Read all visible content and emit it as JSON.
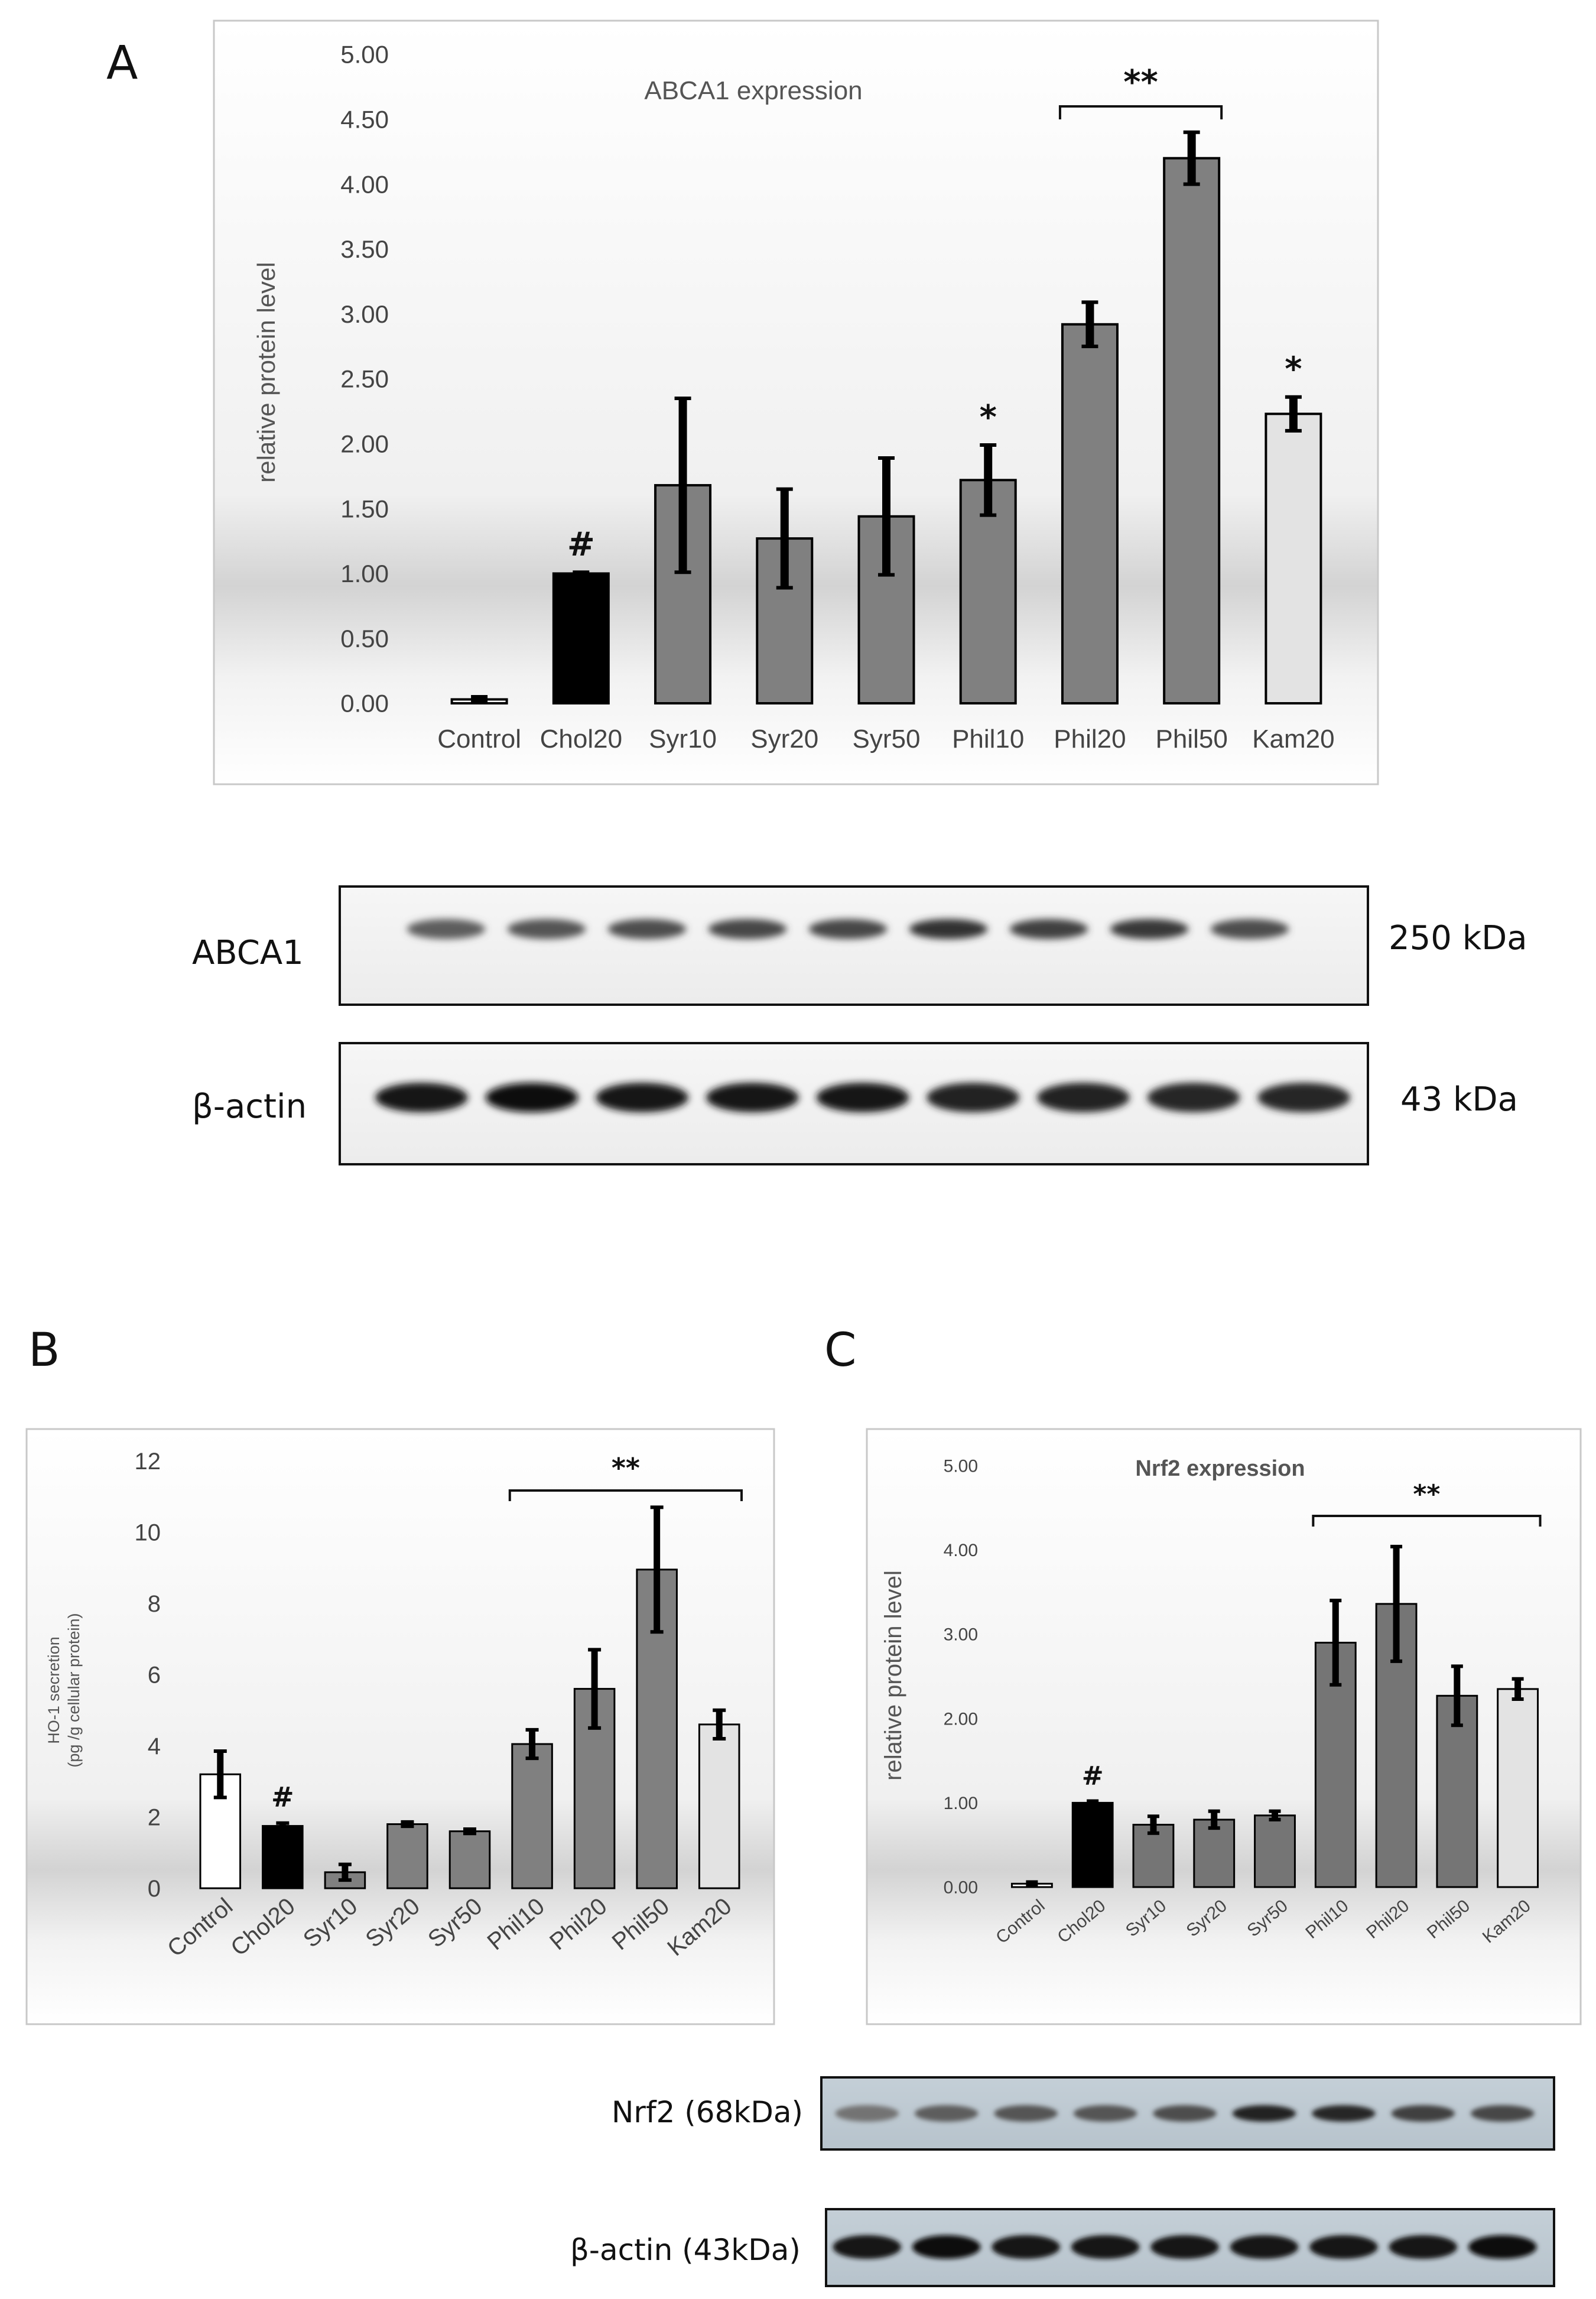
{
  "panels": {
    "a_letter": "A",
    "b_letter": "B",
    "c_letter": "C"
  },
  "chart_data": [
    {
      "id": "a",
      "type": "bar",
      "title": "ABCA1 expression",
      "xlabel": "",
      "ylabel": "relative protein level",
      "categories": [
        "Control",
        "Chol20",
        "Syr10",
        "Syr20",
        "Syr50",
        "Phil10",
        "Phil20",
        "Phil50",
        "Kam20"
      ],
      "values": [
        0.03,
        1.0,
        1.68,
        1.27,
        1.44,
        1.72,
        2.92,
        4.2,
        2.23
      ],
      "errors": [
        0.02,
        0.01,
        0.67,
        0.38,
        0.45,
        0.27,
        0.17,
        0.2,
        0.13
      ],
      "colors": [
        "#ffffff",
        "#000000",
        "#808080",
        "#808080",
        "#808080",
        "#808080",
        "#808080",
        "#808080",
        "#e3e3e3"
      ],
      "ylim": [
        0,
        5
      ],
      "yticks": [
        "0.00",
        "0.50",
        "1.00",
        "1.50",
        "2.00",
        "2.50",
        "3.00",
        "3.50",
        "4.00",
        "4.50",
        "5.00"
      ],
      "annotations": [
        {
          "index": 1,
          "text": "#"
        },
        {
          "index": 5,
          "text": "*"
        },
        {
          "index": 8,
          "text": "*"
        }
      ],
      "bracket": {
        "from": 6,
        "to": 7,
        "text": "**"
      }
    },
    {
      "id": "b",
      "type": "bar",
      "title": "",
      "xlabel": "",
      "ylabel": "HO-1 secretion",
      "ylabel_sub": "(pg /g cellular protein)",
      "categories": [
        "Control",
        "Chol20",
        "Syr10",
        "Syr20",
        "Syr50",
        "Phil10",
        "Phil20",
        "Phil50",
        "Kam20"
      ],
      "values": [
        3.2,
        1.75,
        0.45,
        1.8,
        1.6,
        4.05,
        5.6,
        8.95,
        4.6
      ],
      "errors": [
        0.65,
        0.08,
        0.22,
        0.06,
        0.06,
        0.4,
        1.1,
        1.75,
        0.4
      ],
      "colors": [
        "#ffffff",
        "#000000",
        "#808080",
        "#808080",
        "#808080",
        "#808080",
        "#808080",
        "#808080",
        "#e3e3e3"
      ],
      "ylim": [
        0,
        12
      ],
      "yticks": [
        "0",
        "2",
        "4",
        "6",
        "8",
        "10",
        "12"
      ],
      "annotations": [
        {
          "index": 1,
          "text": "#"
        }
      ],
      "bracket": {
        "from": 5,
        "to": 8,
        "text": "**"
      }
    },
    {
      "id": "c",
      "type": "bar",
      "title": "Nrf2 expression",
      "xlabel": "",
      "ylabel": "relative protein level",
      "categories": [
        "Control",
        "Chol20",
        "Syr10",
        "Syr20",
        "Syr50",
        "Phil10",
        "Phil20",
        "Phil50",
        "Kam20"
      ],
      "values": [
        0.04,
        1.0,
        0.74,
        0.8,
        0.85,
        2.9,
        3.36,
        2.27,
        2.35
      ],
      "errors": [
        0.02,
        0.02,
        0.1,
        0.1,
        0.05,
        0.5,
        0.68,
        0.35,
        0.12
      ],
      "colors": [
        "#ffffff",
        "#000000",
        "#757575",
        "#757575",
        "#757575",
        "#757575",
        "#757575",
        "#757575",
        "#e3e3e3"
      ],
      "ylim": [
        0,
        5
      ],
      "yticks": [
        "0.00",
        "1.00",
        "2.00",
        "3.00",
        "4.00",
        "5.00"
      ],
      "annotations": [
        {
          "index": 1,
          "text": "#"
        }
      ],
      "bracket": {
        "from": 5,
        "to": 8,
        "text": "**"
      }
    }
  ],
  "blots": {
    "a_abca1": {
      "label": "ABCA1",
      "size": "250 kDa",
      "intensity": [
        0.45,
        0.5,
        0.55,
        0.6,
        0.6,
        0.75,
        0.65,
        0.7,
        0.55
      ]
    },
    "a_actin": {
      "label": "β-actin",
      "size": "43 kDa",
      "intensity": [
        0.95,
        1.0,
        0.9,
        0.95,
        0.95,
        0.85,
        0.85,
        0.8,
        0.8
      ]
    },
    "c_nrf2": {
      "label": "Nrf2 (68kDa)",
      "intensity": [
        0.3,
        0.45,
        0.5,
        0.5,
        0.55,
        0.85,
        0.8,
        0.65,
        0.6
      ]
    },
    "c_actin": {
      "label": "β-actin (43kDa)",
      "intensity": [
        0.95,
        1.0,
        0.9,
        0.9,
        0.9,
        0.9,
        0.95,
        0.95,
        1.0
      ]
    }
  }
}
